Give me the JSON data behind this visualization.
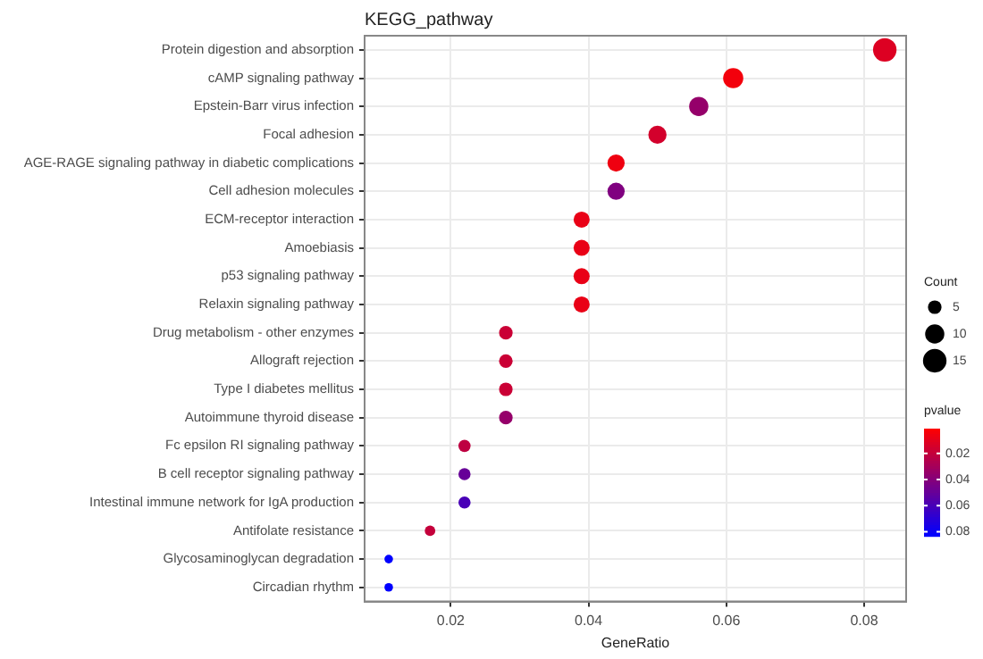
{
  "chart_data": {
    "type": "bubble",
    "title": "KEGG_pathway",
    "xlabel": "GeneRatio",
    "orientation": "horizontal",
    "categories": [
      "Protein digestion and absorption",
      "cAMP signaling pathway",
      "Epstein-Barr virus infection",
      "Focal adhesion",
      "AGE-RAGE signaling pathway in diabetic complications",
      "Cell adhesion molecules",
      "ECM-receptor interaction",
      "Amoebiasis",
      "p53 signaling pathway",
      "Relaxin signaling pathway",
      "Drug metabolism - other enzymes",
      "Allograft rejection",
      "Type I diabetes mellitus",
      "Autoimmune thyroid disease",
      "Fc epsilon RI signaling pathway",
      "B cell receptor signaling pathway",
      "Intestinal immune network for IgA production",
      "Antifolate resistance",
      "Glycosaminoglycan degradation",
      "Circadian rhythm"
    ],
    "values": [
      0.083,
      0.061,
      0.056,
      0.05,
      0.044,
      0.044,
      0.039,
      0.039,
      0.039,
      0.039,
      0.028,
      0.028,
      0.028,
      0.028,
      0.022,
      0.022,
      0.022,
      0.017,
      0.011,
      0.011
    ],
    "sizes": [
      15,
      11,
      10,
      9,
      8,
      8,
      7,
      7,
      7,
      7,
      5,
      5,
      5,
      5,
      4,
      4,
      4,
      3,
      2,
      2
    ],
    "cvalues": [
      0.012,
      0.005,
      0.035,
      0.015,
      0.006,
      0.042,
      0.008,
      0.008,
      0.008,
      0.008,
      0.018,
      0.018,
      0.018,
      0.035,
      0.022,
      0.05,
      0.06,
      0.02,
      0.083,
      0.083
    ],
    "size_legend": [
      5,
      10,
      15
    ],
    "legend_title": "Count",
    "clabel": "pvalue",
    "clim": [
      0.001,
      0.083
    ],
    "cticks": [
      0.02,
      0.04,
      0.06,
      0.08
    ],
    "xlim": [
      0.0075,
      0.0861
    ],
    "xticks": [
      0.02,
      0.04,
      0.06,
      0.08
    ],
    "grid": true
  }
}
